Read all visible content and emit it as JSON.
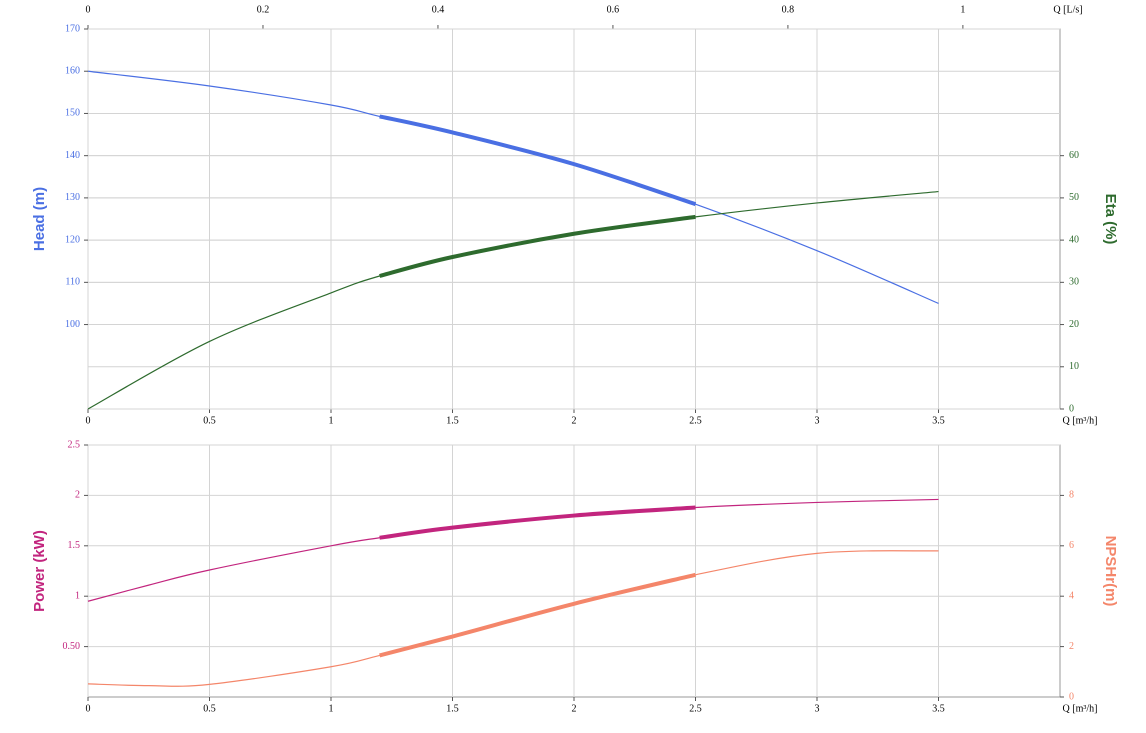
{
  "chart_data": [
    {
      "type": "line",
      "xlabel": "Q [m³/h]",
      "x2label": "Q [L/s]",
      "ylabel": "Head (m)",
      "y2label": "Eta (%)",
      "x": [
        0,
        0.5,
        1,
        1.2,
        1.5,
        2,
        2.5,
        3,
        3.5
      ],
      "xlim": [
        0,
        4
      ],
      "xticks": [
        0,
        0.5,
        1,
        1.5,
        2,
        2.5,
        3,
        3.5
      ],
      "x2lim": [
        0,
        1.111
      ],
      "x2ticks": [
        0,
        0.2,
        0.4,
        0.6,
        0.8,
        1
      ],
      "ylim": [
        80,
        170
      ],
      "yticks": [
        100,
        110,
        120,
        130,
        140,
        150,
        160,
        170
      ],
      "y2lim": [
        0,
        90
      ],
      "y2ticks": [
        0,
        10,
        20,
        30,
        40,
        50,
        60
      ],
      "grid": true,
      "bold_range": [
        1.2,
        2.5
      ],
      "series": [
        {
          "color": "#4a6fe3",
          "values": [
            160,
            156.5,
            152,
            149.3,
            145.5,
            138,
            128.5,
            117.5,
            105
          ]
        },
        {
          "color": "#2e6b2e",
          "axis": "y2",
          "values": [
            0,
            16,
            27.5,
            31.5,
            36,
            41.5,
            45.5,
            48.8,
            51.5
          ]
        }
      ]
    },
    {
      "type": "line",
      "xlabel": "Q [m³/h]",
      "ylabel": "Power (kW)",
      "y2label": "NPSHr(m)",
      "x": [
        0,
        0.25,
        0.5,
        1,
        1.2,
        1.5,
        2,
        2.5,
        3,
        3.5
      ],
      "xlim": [
        0,
        4
      ],
      "xticks": [
        0,
        0.5,
        1,
        1.5,
        2,
        2.5,
        3,
        3.5
      ],
      "ylim": [
        0,
        2.5
      ],
      "yticks": [
        {
          "value": 0.5,
          "label": "0.50"
        },
        1,
        1.5,
        2,
        2.5
      ],
      "y2lim": [
        0,
        10
      ],
      "y2ticks": [
        0,
        2,
        4,
        6,
        8
      ],
      "grid": true,
      "bold_range": [
        1.2,
        2.5
      ],
      "series": [
        {
          "color": "#c2257e",
          "values": [
            0.95,
            1.11,
            1.26,
            1.5,
            1.58,
            1.68,
            1.8,
            1.88,
            1.93,
            1.96
          ]
        },
        {
          "color": "#f4866a",
          "axis": "y2",
          "values": [
            0.52,
            0.45,
            0.5,
            1.2,
            1.65,
            2.4,
            3.7,
            4.85,
            5.7,
            5.8
          ]
        }
      ]
    }
  ]
}
